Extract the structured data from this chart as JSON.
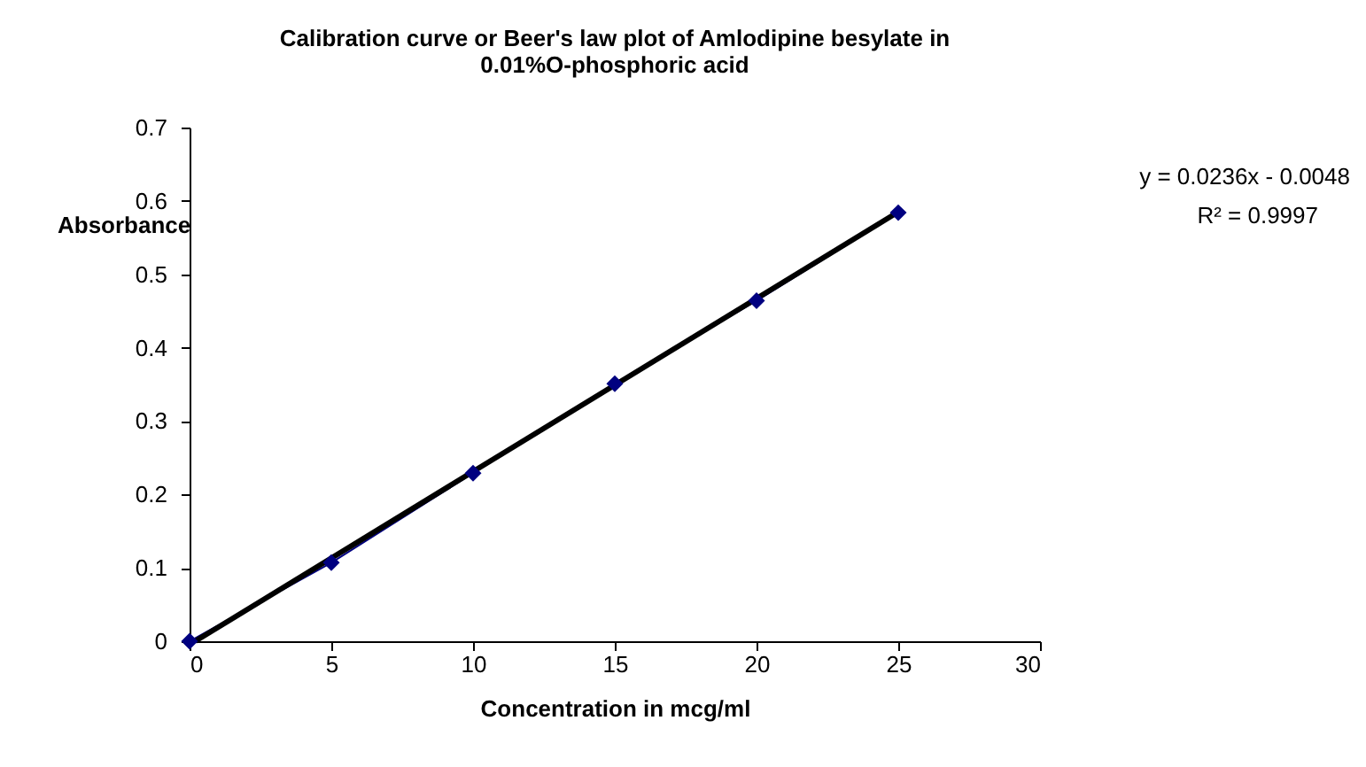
{
  "chart_data": {
    "type": "line",
    "title": [
      "Calibration curve or Beer's law plot of Amlodipine besylate in",
      "0.01%O-phosphoric acid"
    ],
    "xlabel": "Concentration in mcg/ml",
    "ylabel": "Absorbance",
    "x": [
      0,
      5,
      10,
      15,
      20,
      25
    ],
    "series": [
      {
        "color": "#000080",
        "values": [
          0,
          0.107,
          0.229,
          0.351,
          0.464,
          0.584
        ],
        "marker": "diamond"
      },
      {
        "type": "line",
        "color": "#000000",
        "x": [
          0.2,
          25
        ],
        "values": [
          0,
          0.585
        ],
        "marker": "none"
      }
    ],
    "annotations": [
      "y = 0.0236x - 0.0048",
      "R² = 0.9997"
    ],
    "xlim": [
      0,
      30
    ],
    "xticks": [
      0,
      5,
      10,
      15,
      20,
      25,
      30
    ],
    "ylim": [
      0,
      0.7
    ],
    "yticks": [
      0,
      0.1,
      0.2,
      0.3,
      0.4,
      0.5,
      0.6,
      0.7
    ],
    "grid": false
  }
}
